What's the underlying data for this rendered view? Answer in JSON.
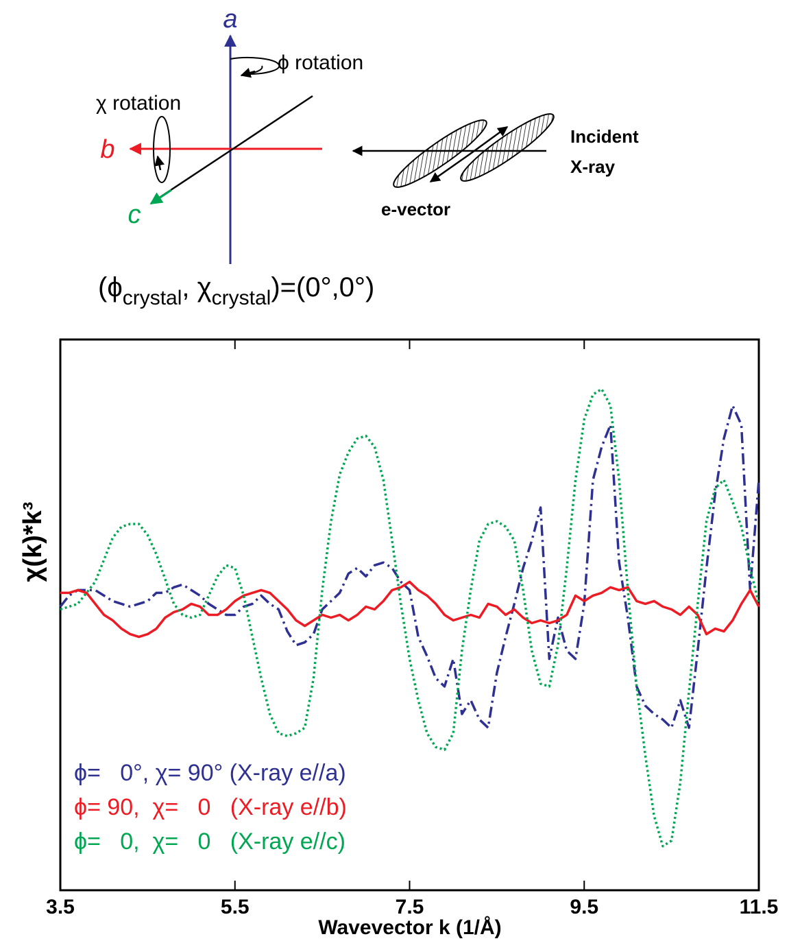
{
  "diagram": {
    "axis_a": "a",
    "axis_b": "b",
    "axis_c": "c",
    "phi_rotation": "ϕ rotation",
    "chi_rotation": "χ rotation",
    "incident": [
      "Incident",
      "X-ray"
    ],
    "e_vector": "e-vector",
    "caption": [
      "(ϕ",
      "crystal",
      ", χ",
      "crystal",
      ")=(0°,0°)"
    ]
  },
  "chart_data": {
    "type": "line",
    "xlabel": "Wavevector k (1/Å)",
    "ylabel": "χ(k)*k³",
    "x": [
      3.5,
      3.6,
      3.7,
      3.8,
      3.9,
      4.0,
      4.1,
      4.2,
      4.3,
      4.4,
      4.5,
      4.6,
      4.7,
      4.8,
      4.9,
      5.0,
      5.1,
      5.2,
      5.3,
      5.4,
      5.5,
      5.6,
      5.7,
      5.8,
      5.9,
      6.0,
      6.1,
      6.2,
      6.3,
      6.4,
      6.5,
      6.6,
      6.7,
      6.8,
      6.9,
      7.0,
      7.1,
      7.2,
      7.3,
      7.4,
      7.5,
      7.6,
      7.7,
      7.8,
      7.9,
      8.0,
      8.1,
      8.2,
      8.3,
      8.4,
      8.5,
      8.6,
      8.7,
      8.8,
      8.9,
      9.0,
      9.1,
      9.2,
      9.3,
      9.4,
      9.5,
      9.6,
      9.7,
      9.8,
      9.9,
      10.0,
      10.1,
      10.2,
      10.3,
      10.4,
      10.5,
      10.6,
      10.7,
      10.8,
      10.9,
      11.0,
      11.1,
      11.2,
      11.3,
      11.4,
      11.5
    ],
    "series": [
      {
        "name": "ϕ=   0°, χ= 90° (X-ray e//a)",
        "color": "#2e3192",
        "dash": "16 6 3 6",
        "values": [
          0.03,
          0.07,
          0.09,
          0.09,
          0.09,
          0.07,
          0.05,
          0.04,
          0.03,
          0.04,
          0.05,
          0.08,
          0.08,
          0.1,
          0.11,
          0.09,
          0.07,
          0.04,
          0.02,
          0,
          0,
          0.03,
          0.04,
          0.07,
          0.04,
          0.02,
          -0.06,
          -0.11,
          -0.1,
          -0.07,
          0.02,
          0.05,
          0.08,
          0.15,
          0.17,
          0.14,
          0.18,
          0.19,
          0.17,
          0.12,
          0.09,
          -0.08,
          -0.15,
          -0.23,
          -0.26,
          -0.16,
          -0.36,
          -0.31,
          -0.38,
          -0.41,
          -0.21,
          -0.08,
          0.04,
          0.17,
          0.27,
          0.39,
          -0.16,
          -0.01,
          -0.13,
          -0.16,
          0.04,
          0.49,
          0.61,
          0.69,
          0.19,
          -0.01,
          -0.26,
          -0.33,
          -0.36,
          -0.38,
          -0.41,
          -0.31,
          -0.41,
          -0.13,
          0.17,
          0.44,
          0.64,
          0.76,
          0.69,
          0.09,
          0.49
        ]
      },
      {
        "name": "ϕ= 90,  χ=   0   (X-ray e//b)",
        "color": "#ed1c24",
        "dash": "none",
        "values": [
          0.08,
          0.08,
          0.09,
          0.08,
          0.04,
          0,
          -0.02,
          -0.05,
          -0.07,
          -0.08,
          -0.07,
          -0.05,
          -0.01,
          0.01,
          0.02,
          0.04,
          0.03,
          0,
          0,
          0.02,
          0.05,
          0.07,
          0.08,
          0.09,
          0.08,
          0.05,
          0.02,
          -0.02,
          -0.04,
          -0.02,
          0,
          -0.01,
          0,
          -0.02,
          0,
          0.03,
          0.02,
          0.05,
          0.09,
          0.1,
          0.12,
          0.09,
          0.07,
          0.04,
          0,
          -0.02,
          -0.01,
          0,
          -0.01,
          0.04,
          0.03,
          0,
          0.02,
          -0.01,
          -0.03,
          -0.02,
          -0.03,
          -0.02,
          0,
          0.07,
          0.05,
          0.07,
          0.08,
          0.1,
          0.09,
          0.1,
          0.05,
          0.04,
          0.05,
          0.03,
          0.02,
          0,
          0.03,
          0,
          -0.07,
          -0.05,
          -0.06,
          -0.02,
          0.04,
          0.09,
          0.03
        ]
      },
      {
        "name": "ϕ=   0,  χ=   0   (X-ray e//c)",
        "color": "#00a651",
        "dash": "3 4",
        "values": [
          0.02,
          0.03,
          0.04,
          0.08,
          0.12,
          0.2,
          0.28,
          0.32,
          0.33,
          0.33,
          0.29,
          0.22,
          0.13,
          0.04,
          0,
          -0.01,
          0,
          0.07,
          0.14,
          0.18,
          0.17,
          0.07,
          -0.08,
          -0.23,
          -0.36,
          -0.43,
          -0.44,
          -0.43,
          -0.41,
          -0.23,
          0.09,
          0.34,
          0.51,
          0.59,
          0.64,
          0.65,
          0.61,
          0.49,
          0.27,
          0.04,
          -0.16,
          -0.31,
          -0.43,
          -0.48,
          -0.49,
          -0.43,
          -0.13,
          0.09,
          0.27,
          0.33,
          0.34,
          0.32,
          0.27,
          0.09,
          -0.13,
          -0.25,
          -0.26,
          -0.11,
          0.17,
          0.49,
          0.71,
          0.8,
          0.82,
          0.76,
          0.49,
          0.09,
          -0.26,
          -0.51,
          -0.73,
          -0.84,
          -0.82,
          -0.61,
          -0.28,
          0.04,
          0.34,
          0.46,
          0.49,
          0.41,
          0.32,
          0.17,
          0.04
        ]
      }
    ],
    "xlim": [
      3.5,
      11.5
    ],
    "xticks": [
      3.5,
      5.5,
      7.5,
      9.5,
      11.5
    ],
    "ylim": [
      -1,
      1
    ],
    "grid": false,
    "legend": "lower left"
  }
}
